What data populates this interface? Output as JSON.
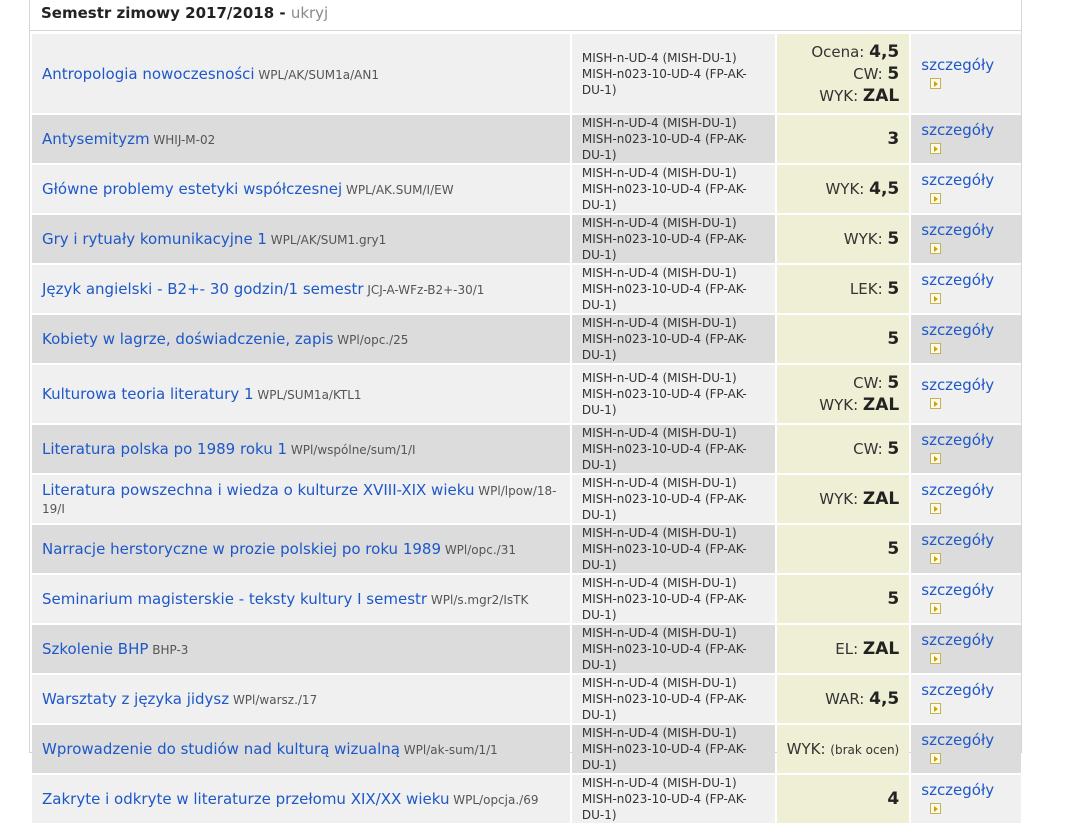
{
  "semester": {
    "title": "Semestr zimowy 2017/2018 - ",
    "hide_label": "ukryj"
  },
  "details_label": "szczegóły",
  "courses": [
    {
      "name": "Antropologia nowoczesności",
      "code": "WPL/AK/SUM1a/AN1",
      "program1": "MISH-n-UD-4 (MISH-DU-1)",
      "program2": "MISH-n023-10-UD-4 (FP-AK-DU-1)",
      "grades": [
        {
          "label": "Ocena: ",
          "value": "4,5"
        },
        {
          "label": "CW: ",
          "value": "5"
        },
        {
          "label": "WYK: ",
          "value": "ZAL"
        }
      ]
    },
    {
      "name": "Antysemityzm",
      "code": "WHIJ-M-02",
      "program1": "MISH-n-UD-4 (MISH-DU-1)",
      "program2": "MISH-n023-10-UD-4 (FP-AK-DU-1)",
      "grades": [
        {
          "label": "",
          "value": "3"
        }
      ]
    },
    {
      "name": "Główne problemy estetyki współczesnej",
      "code": "WPL/AK.SUM/I/EW",
      "program1": "MISH-n-UD-4 (MISH-DU-1)",
      "program2": "MISH-n023-10-UD-4 (FP-AK-DU-1)",
      "grades": [
        {
          "label": "WYK: ",
          "value": "4,5"
        }
      ]
    },
    {
      "name": "Gry i rytuały komunikacyjne 1",
      "code": "WPL/AK/SUM1.gry1",
      "program1": "MISH-n-UD-4 (MISH-DU-1)",
      "program2": "MISH-n023-10-UD-4 (FP-AK-DU-1)",
      "grades": [
        {
          "label": "WYK: ",
          "value": "5"
        }
      ]
    },
    {
      "name": "Język angielski - B2+- 30 godzin/1 semestr",
      "code": "JCJ-A-WFz-B2+-30/1",
      "program1": "MISH-n-UD-4 (MISH-DU-1)",
      "program2": "MISH-n023-10-UD-4 (FP-AK-DU-1)",
      "grades": [
        {
          "label": "LEK: ",
          "value": "5"
        }
      ]
    },
    {
      "name": "Kobiety w lagrze, doświadczenie, zapis",
      "code": "WPl/opc./25",
      "program1": "MISH-n-UD-4 (MISH-DU-1)",
      "program2": "MISH-n023-10-UD-4 (FP-AK-DU-1)",
      "grades": [
        {
          "label": "",
          "value": "5"
        }
      ]
    },
    {
      "name": "Kulturowa teoria literatury 1",
      "code": "WPL/SUM1a/KTL1",
      "program1": "MISH-n-UD-4 (MISH-DU-1)",
      "program2": "MISH-n023-10-UD-4 (FP-AK-DU-1)",
      "grades": [
        {
          "label": "CW: ",
          "value": "5"
        },
        {
          "label": "WYK: ",
          "value": "ZAL"
        }
      ]
    },
    {
      "name": "Literatura polska po 1989 roku 1",
      "code": "WPl/wspólne/sum/1/I",
      "program1": "MISH-n-UD-4 (MISH-DU-1)",
      "program2": "MISH-n023-10-UD-4 (FP-AK-DU-1)",
      "grades": [
        {
          "label": "CW: ",
          "value": "5"
        }
      ]
    },
    {
      "name": "Literatura powszechna i wiedza o kulturze XVIII-XIX wieku",
      "code": "WPl/lpow/18-19/I",
      "program1": "MISH-n-UD-4 (MISH-DU-1)",
      "program2": "MISH-n023-10-UD-4 (FP-AK-DU-1)",
      "grades": [
        {
          "label": "WYK: ",
          "value": "ZAL"
        }
      ]
    },
    {
      "name": "Narracje herstoryczne w prozie polskiej po roku 1989",
      "code": "WPl/opc./31",
      "program1": "MISH-n-UD-4 (MISH-DU-1)",
      "program2": "MISH-n023-10-UD-4 (FP-AK-DU-1)",
      "grades": [
        {
          "label": "",
          "value": "5"
        }
      ]
    },
    {
      "name": "Seminarium magisterskie - teksty kultury I semestr",
      "code": "WPl/s.mgr2/IsTK",
      "program1": "MISH-n-UD-4 (MISH-DU-1)",
      "program2": "MISH-n023-10-UD-4 (FP-AK-DU-1)",
      "grades": [
        {
          "label": "",
          "value": "5"
        }
      ]
    },
    {
      "name": "Szkolenie BHP",
      "code": "BHP-3",
      "program1": "MISH-n-UD-4 (MISH-DU-1)",
      "program2": "MISH-n023-10-UD-4 (FP-AK-DU-1)",
      "grades": [
        {
          "label": "EL: ",
          "value": "ZAL"
        }
      ]
    },
    {
      "name": "Warsztaty z języka jidysz",
      "code": "WPl/warsz./17",
      "program1": "MISH-n-UD-4 (MISH-DU-1)",
      "program2": "MISH-n023-10-UD-4 (FP-AK-DU-1)",
      "grades": [
        {
          "label": "WAR: ",
          "value": "4,5"
        }
      ]
    },
    {
      "name": "Wprowadzenie do studiów nad kulturą wizualną",
      "code": "WPl/ak-sum/1/1",
      "program1": "MISH-n-UD-4 (MISH-DU-1)",
      "program2": "MISH-n023-10-UD-4 (FP-AK-DU-1)",
      "grades": [
        {
          "label": "WYK: ",
          "note": "(brak ocen)"
        }
      ]
    },
    {
      "name": "Zakryte i odkryte w literaturze przełomu XIX/XX wieku",
      "code": "WPL/opcja./69",
      "program1": "MISH-n-UD-4 (MISH-DU-1)",
      "program2": "MISH-n023-10-UD-4 (FP-AK-DU-1)",
      "grades": [
        {
          "label": "",
          "value": "4"
        }
      ]
    }
  ]
}
